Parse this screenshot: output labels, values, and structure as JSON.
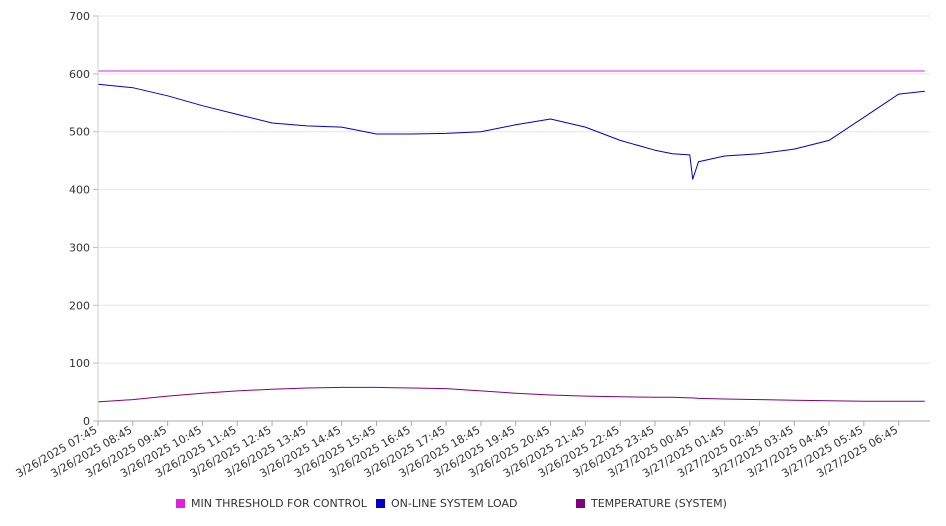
{
  "chart_data": {
    "type": "line",
    "title": "",
    "xlabel": "",
    "ylabel": "",
    "ylim": [
      0,
      700
    ],
    "yticks": [
      0,
      100,
      200,
      300,
      400,
      500,
      600,
      700
    ],
    "grid": true,
    "legend_position": "bottom",
    "x_tick_labels": [
      "3/26/2025 07:45",
      "3/26/2025 08:45",
      "3/26/2025 09:45",
      "3/26/2025 10:45",
      "3/26/2025 11:45",
      "3/26/2025 12:45",
      "3/26/2025 13:45",
      "3/26/2025 14:45",
      "3/26/2025 15:45",
      "3/26/2025 16:45",
      "3/26/2025 17:45",
      "3/26/2025 18:45",
      "3/26/2025 19:45",
      "3/26/2025 20:45",
      "3/26/2025 21:45",
      "3/26/2025 22:45",
      "3/26/2025 23:45",
      "3/27/2025 00:45",
      "3/27/2025 01:45",
      "3/27/2025 02:45",
      "3/27/2025 03:45",
      "3/27/2025 04:45",
      "3/27/2025 05:45",
      "3/27/2025 06:45"
    ],
    "x": [
      "3/26/2025 07:45",
      "3/26/2025 08:45",
      "3/26/2025 09:45",
      "3/26/2025 10:45",
      "3/26/2025 11:45",
      "3/26/2025 12:45",
      "3/26/2025 13:45",
      "3/26/2025 14:45",
      "3/26/2025 15:45",
      "3/26/2025 16:45",
      "3/26/2025 17:45",
      "3/26/2025 18:45",
      "3/26/2025 19:45",
      "3/26/2025 20:45",
      "3/26/2025 21:45",
      "3/26/2025 22:45",
      "3/26/2025 23:45",
      "3/27/2025 00:15",
      "3/27/2025 00:45",
      "3/27/2025 00:50",
      "3/27/2025 01:00",
      "3/27/2025 01:45",
      "3/27/2025 02:45",
      "3/27/2025 03:45",
      "3/27/2025 04:45",
      "3/27/2025 05:45",
      "3/27/2025 06:45",
      "3/27/2025 07:30"
    ],
    "series": [
      {
        "name": "MIN THRESHOLD FOR CONTROL",
        "color": "#e020e0",
        "values": [
          605,
          605,
          605,
          605,
          605,
          605,
          605,
          605,
          605,
          605,
          605,
          605,
          605,
          605,
          605,
          605,
          605,
          605,
          605,
          605,
          605,
          605,
          605,
          605,
          605,
          605,
          605,
          605
        ]
      },
      {
        "name": "ON-LINE SYSTEM LOAD",
        "color": "#0000cc",
        "values": [
          582,
          576,
          562,
          545,
          530,
          515,
          510,
          508,
          496,
          496,
          497,
          500,
          512,
          522,
          508,
          485,
          468,
          462,
          460,
          418,
          448,
          458,
          462,
          470,
          485,
          525,
          565,
          570
        ]
      },
      {
        "name": "TEMPERATURE (SYSTEM)",
        "color": "#800080",
        "values": [
          33,
          37,
          43,
          48,
          52,
          55,
          57,
          58,
          58,
          57,
          56,
          52,
          48,
          45,
          43,
          42,
          41,
          41,
          40,
          40,
          39,
          38,
          37,
          36,
          35,
          34,
          34,
          34
        ]
      }
    ]
  }
}
